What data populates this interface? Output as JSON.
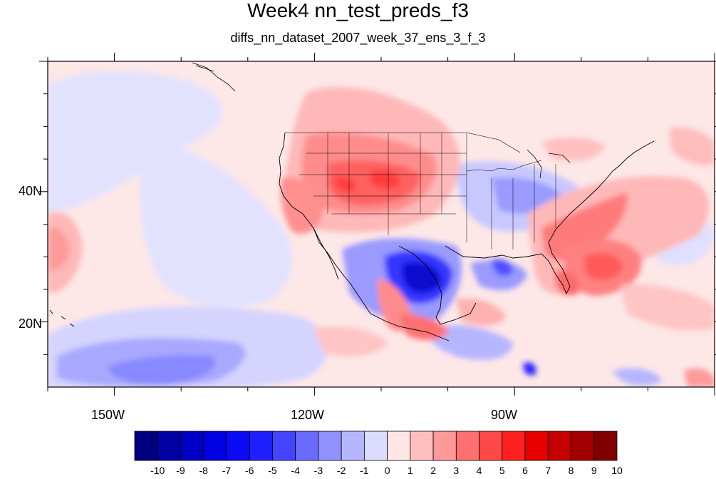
{
  "header": {
    "title": "Week4 nn_test_preds_f3",
    "subtitle": "diffs_nn_dataset_2007_week_37_ens_3_f_3"
  },
  "axes": {
    "x_ticks": [
      "150W",
      "120W",
      "90W"
    ],
    "y_ticks": [
      "40N",
      "20N"
    ]
  },
  "colorbar": {
    "labels": [
      "-10",
      "-9",
      "-8",
      "-7",
      "-6",
      "-5",
      "-4",
      "-3",
      "-2",
      "-1",
      "0",
      "1",
      "2",
      "3",
      "4",
      "5",
      "6",
      "7",
      "8",
      "9",
      "10"
    ],
    "colors": [
      "#000080",
      "#0000a3",
      "#0000c5",
      "#0000e0",
      "#0b0bf5",
      "#1f1fff",
      "#4444ff",
      "#6a6aff",
      "#9090ff",
      "#b6b6ff",
      "#dcdcff",
      "#ffe6e6",
      "#ffbfbf",
      "#ff9898",
      "#ff7070",
      "#ff4848",
      "#ff2020",
      "#e60000",
      "#c40000",
      "#a20000",
      "#800000"
    ]
  },
  "map": {
    "lon_range": [
      -160,
      -60
    ],
    "lat_range": [
      10,
      60
    ],
    "background_color": "#fde7e7",
    "coast_color": "#000000"
  }
}
